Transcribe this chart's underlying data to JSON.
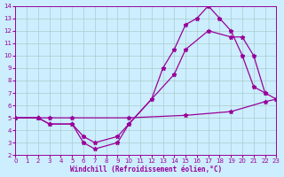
{
  "xlabel": "Windchill (Refroidissement éolien,°C)",
  "bg_color": "#cceeff",
  "grid_color": "#aacccc",
  "line_color": "#990099",
  "xlim": [
    0,
    23
  ],
  "ylim": [
    2,
    14
  ],
  "xticks": [
    0,
    1,
    2,
    3,
    4,
    5,
    6,
    7,
    8,
    9,
    10,
    11,
    12,
    13,
    14,
    15,
    16,
    17,
    18,
    19,
    20,
    21,
    22,
    23
  ],
  "yticks": [
    2,
    3,
    4,
    5,
    6,
    7,
    8,
    9,
    10,
    11,
    12,
    13,
    14
  ],
  "line1_x": [
    0,
    2,
    3,
    5,
    10,
    15,
    19,
    22,
    23
  ],
  "line1_y": [
    5,
    5,
    5,
    5,
    5,
    5.2,
    5.5,
    6.3,
    6.5
  ],
  "line2_x": [
    0,
    2,
    3,
    5,
    6,
    7,
    9,
    10,
    14,
    15,
    17,
    19,
    20,
    21,
    22,
    23
  ],
  "line2_y": [
    5,
    5,
    4.5,
    4.5,
    3.5,
    3,
    3.5,
    4.5,
    8.5,
    10.5,
    12,
    11.5,
    11.5,
    10,
    7,
    6.5
  ],
  "line3_x": [
    0,
    2,
    3,
    5,
    6,
    7,
    9,
    10,
    12,
    13,
    14,
    15,
    16,
    17,
    18,
    19,
    20,
    21,
    22
  ],
  "line3_y": [
    5,
    5,
    4.5,
    4.5,
    3,
    2.5,
    3,
    4.5,
    6.5,
    9,
    10.5,
    12.5,
    13,
    14,
    13,
    12,
    10,
    7.5,
    7
  ]
}
